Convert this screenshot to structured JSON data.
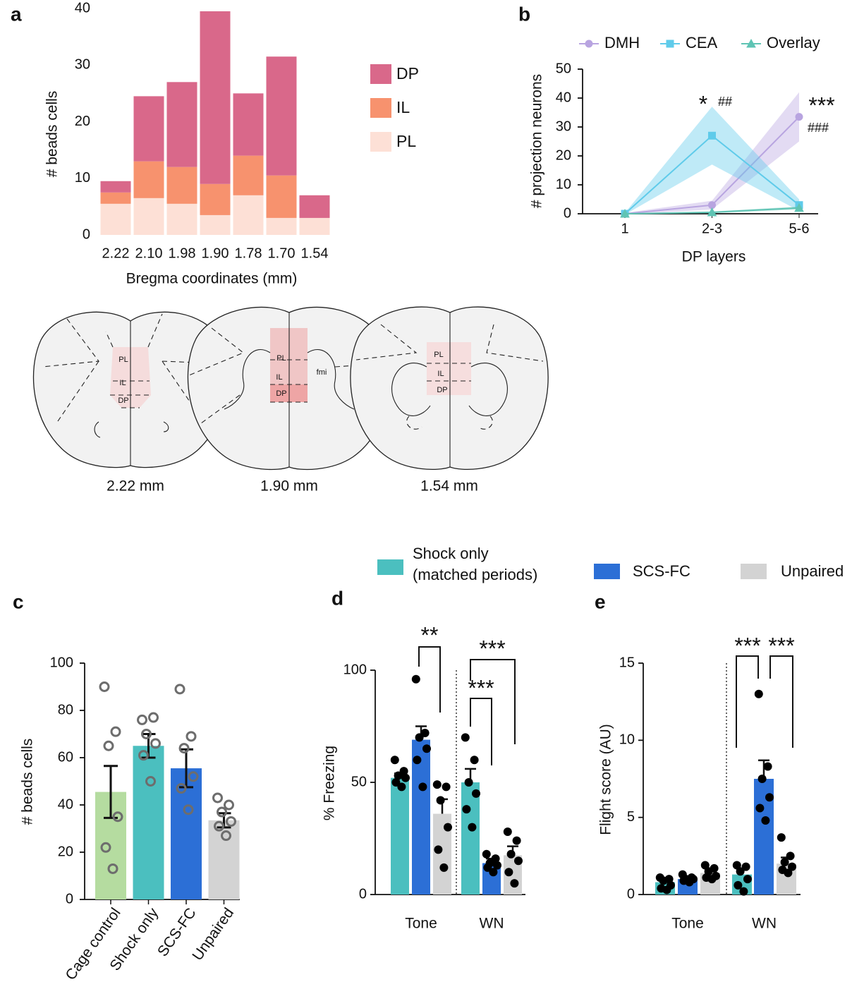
{
  "chart_data": [
    {
      "panel": "a",
      "type": "stacked_bar",
      "categories": [
        "2.22",
        "2.10",
        "1.98",
        "1.90",
        "1.78",
        "1.70",
        "1.54"
      ],
      "series": [
        {
          "name": "DP",
          "color": "#d9688a",
          "values": [
            2,
            11.5,
            15,
            30.5,
            11,
            21,
            4
          ]
        },
        {
          "name": "IL",
          "color": "#f7926e",
          "values": [
            2,
            6.5,
            6.5,
            5.5,
            7,
            7.5,
            0
          ]
        },
        {
          "name": "PL",
          "color": "#fde0d6",
          "values": [
            5.5,
            6.5,
            5.5,
            3.5,
            7,
            3,
            3
          ]
        }
      ],
      "x_label": "Bregma coordinates (mm)",
      "y_label": "# beads cells",
      "ylim": [
        0,
        40
      ],
      "yticks": [
        0,
        10,
        20,
        30,
        40
      ]
    },
    {
      "panel": "b",
      "type": "line",
      "categories": [
        "1",
        "2-3",
        "5-6"
      ],
      "series": [
        {
          "name": "DMH",
          "color": "#b8a4e0",
          "marker": "circle",
          "values": [
            0,
            3,
            33.5
          ],
          "errors": [
            0.3,
            1.5,
            8.5
          ]
        },
        {
          "name": "CEA",
          "color": "#5fcbea",
          "marker": "square",
          "values": [
            0,
            27,
            3
          ],
          "errors": [
            0.3,
            10,
            2
          ]
        },
        {
          "name": "Overlay",
          "color": "#5fc4b4",
          "marker": "triangle",
          "values": [
            0,
            0.5,
            2
          ],
          "errors": [
            0.1,
            0.3,
            0.5
          ]
        }
      ],
      "x_label": "DP layers",
      "y_label": "# projection neurons",
      "ylim": [
        0,
        50
      ],
      "yticks": [
        0,
        10,
        20,
        30,
        40,
        50
      ],
      "annotations": [
        "*",
        "##",
        "***",
        "###"
      ]
    },
    {
      "panel": "c",
      "type": "bar",
      "categories": [
        "Cage control",
        "Shock only",
        "SCS-FC",
        "Unpaired"
      ],
      "colors": [
        "#b5dca0",
        "#4bbfbf",
        "#2c6fd6",
        "#d3d3d3"
      ],
      "values": [
        45.5,
        65,
        55.5,
        33.5
      ],
      "errors": [
        11,
        5,
        8,
        3
      ],
      "points": [
        [
          90,
          71,
          65,
          35,
          22,
          13
        ],
        [
          76,
          77,
          70,
          66,
          61,
          50
        ],
        [
          89,
          69,
          64,
          52,
          47,
          38
        ],
        [
          43,
          40,
          37,
          33,
          31,
          27
        ]
      ],
      "y_label": "# beads cells",
      "ylim": [
        0,
        100
      ],
      "yticks": [
        0,
        20,
        40,
        60,
        80,
        100
      ]
    },
    {
      "panel": "d",
      "type": "grouped_bar",
      "categories": [
        "Tone",
        "WN"
      ],
      "series": [
        {
          "name": "Shock only (matched periods)",
          "color": "#4bbfbf",
          "values": [
            52,
            50
          ],
          "errors": [
            2,
            6
          ],
          "points": [
            [
              60,
              55,
              53,
              52,
              50,
              48
            ],
            [
              70,
              60,
              50,
              45,
              38,
              30
            ]
          ]
        },
        {
          "name": "SCS-FC",
          "color": "#2c6fd6",
          "values": [
            69,
            14
          ],
          "errors": [
            6,
            2
          ],
          "points": [
            [
              96,
              72,
              70,
              65,
              60,
              48
            ],
            [
              18,
              16,
              14,
              13,
              12,
              10
            ]
          ]
        },
        {
          "name": "Unpaired",
          "color": "#d3d3d3",
          "values": [
            36,
            17.5
          ],
          "errors": [
            6.5,
            4
          ],
          "points": [
            [
              49,
              48,
              42,
              30,
              20,
              12
            ],
            [
              28,
              24,
              18,
              15,
              10,
              5
            ]
          ]
        }
      ],
      "y_label": "% Freezing",
      "ylim": [
        0,
        100
      ],
      "yticks": [
        0,
        50,
        100
      ],
      "annotations": [
        "**",
        "***",
        "***"
      ]
    },
    {
      "panel": "e",
      "type": "grouped_bar",
      "categories": [
        "Tone",
        "WN"
      ],
      "series": [
        {
          "color": "#4bbfbf",
          "values": [
            0.8,
            1.3
          ],
          "errors": [
            0.2,
            0.3
          ],
          "points": [
            [
              1.1,
              1.0,
              0.9,
              0.6,
              0.4,
              0.3
            ],
            [
              1.9,
              1.8,
              1.5,
              1.0,
              0.6,
              0.2
            ]
          ]
        },
        {
          "color": "#2c6fd6",
          "values": [
            1.0,
            7.5
          ],
          "errors": [
            0.1,
            1.2
          ],
          "points": [
            [
              1.3,
              1.1,
              1.0,
              1.0,
              0.9,
              0.8
            ],
            [
              13,
              8.3,
              7.5,
              6.3,
              5.6,
              4.8
            ]
          ]
        },
        {
          "color": "#d3d3d3",
          "values": [
            1.4,
            2.0
          ],
          "errors": [
            0.2,
            0.4
          ],
          "points": [
            [
              1.9,
              1.7,
              1.5,
              1.2,
              1.1,
              1.0
            ],
            [
              3.7,
              2.5,
              2.1,
              1.8,
              1.6,
              1.4
            ]
          ]
        }
      ],
      "y_label": "Flight score (AU)",
      "ylim": [
        0,
        15
      ],
      "yticks": [
        0,
        5,
        10,
        15
      ],
      "annotations": [
        "***",
        "***"
      ]
    }
  ],
  "diagram": {
    "sections": [
      {
        "caption": "2.22 mm",
        "labels": [
          "PL",
          "IL",
          "DP"
        ]
      },
      {
        "caption": "1.90 mm",
        "labels": [
          "PL",
          "IL",
          "DP",
          "fmi"
        ]
      },
      {
        "caption": "1.54 mm",
        "labels": [
          "PL",
          "IL",
          "DP"
        ]
      }
    ]
  }
}
